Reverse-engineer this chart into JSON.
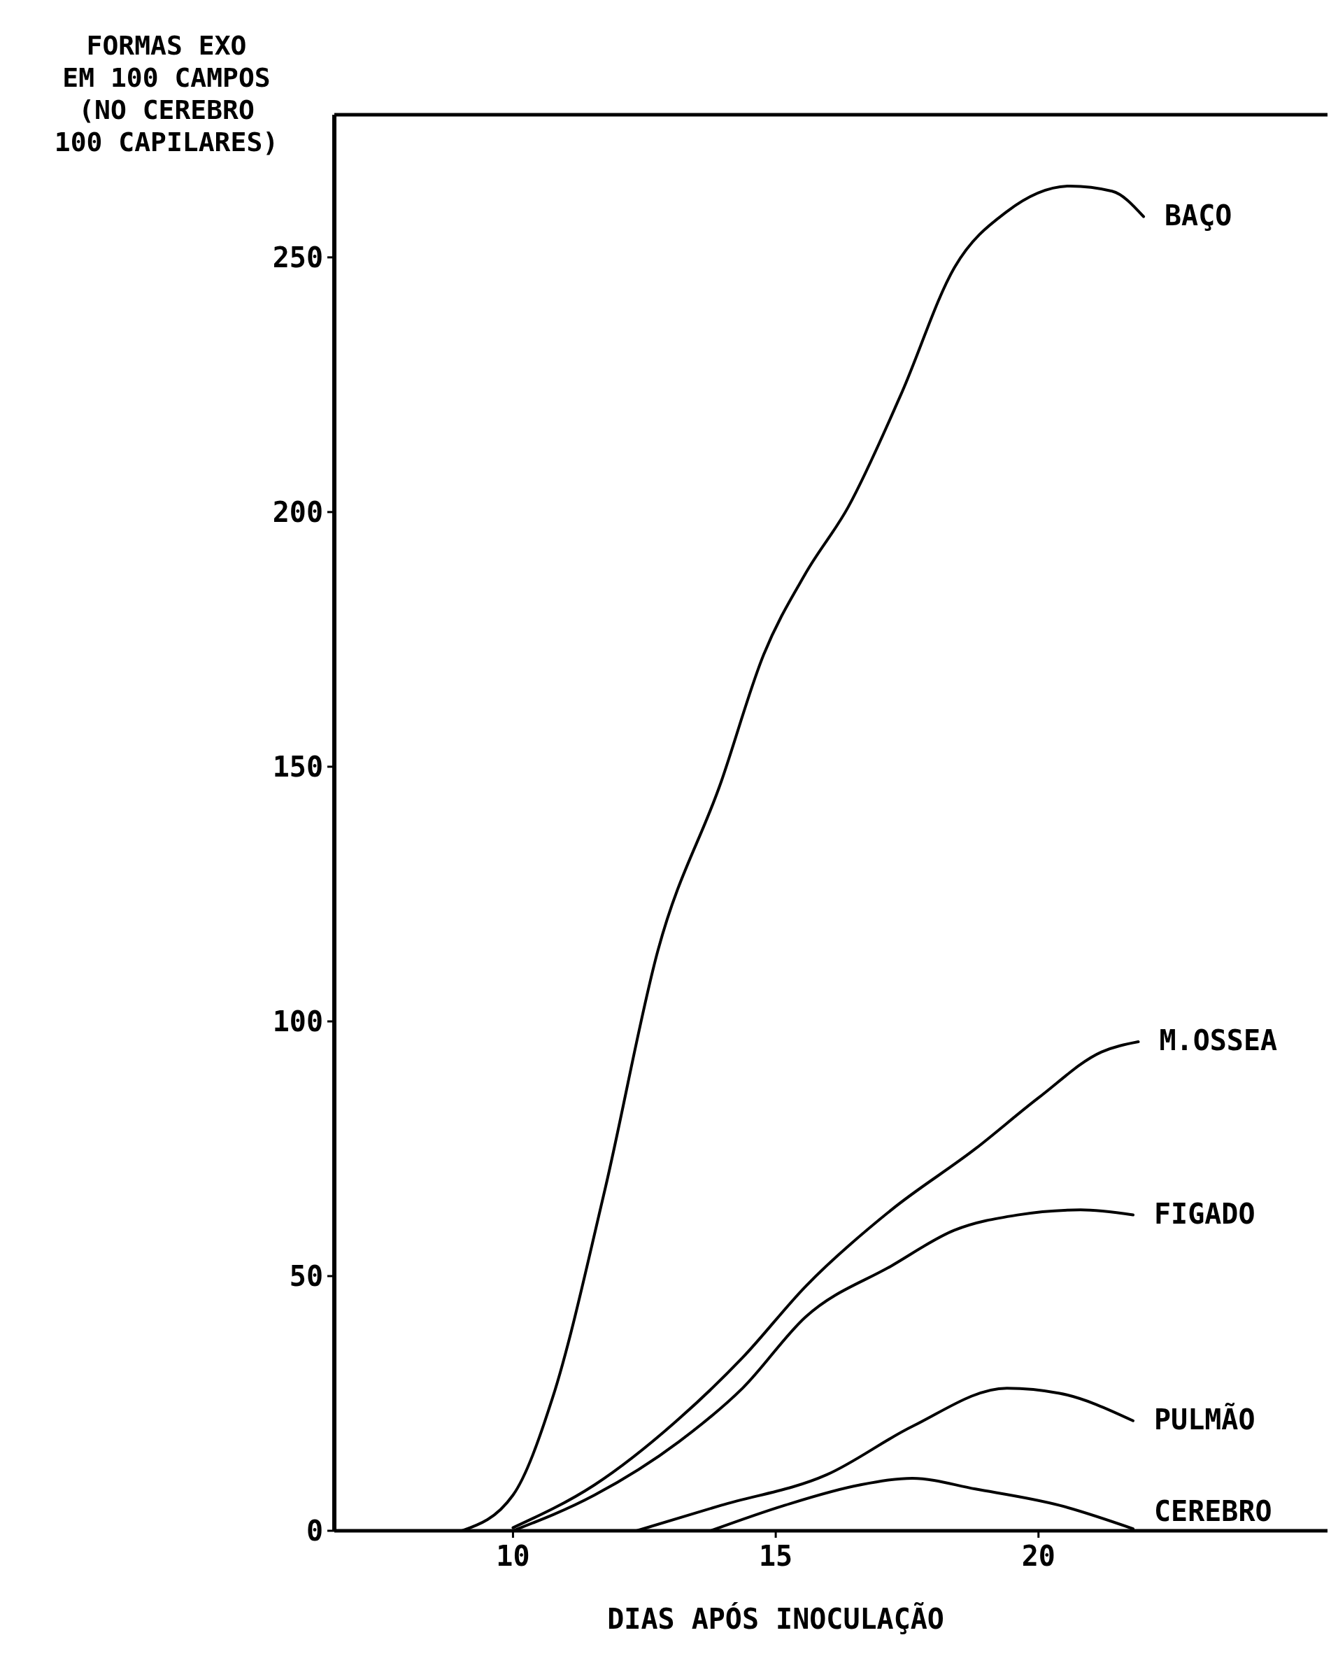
{
  "chart_data": {
    "type": "line",
    "ylabel": "FORMAS EXO\nEM 100 CAMPOS\n(NO CEREBRO\n100 CAPILARES)",
    "xlabel": "DIAS APÓS INOCULAÇÃO",
    "xlim": [
      6.6,
      25.5
    ],
    "xticks": [
      10,
      15,
      20
    ],
    "ylim": [
      0,
      278
    ],
    "yticks": [
      0,
      50,
      100,
      150,
      200,
      250
    ],
    "grid": false,
    "marker": "none",
    "line_style": "solid",
    "series": [
      {
        "name": "BAÇO",
        "color": "#000000",
        "x": [
          9.03,
          10,
          10.75,
          11.75,
          12.76,
          13.96,
          14.77,
          15.57,
          16.38,
          17.38,
          18.4,
          19.4,
          20.6,
          21.4,
          22
        ],
        "values": [
          0,
          7,
          26,
          67,
          114,
          147,
          172,
          188,
          201,
          223,
          248,
          259,
          264,
          263,
          258
        ]
      },
      {
        "name": "M.OSSEA",
        "color": "#000000",
        "x": [
          10,
          11.55,
          13.16,
          14.37,
          15.57,
          17.2,
          18.8,
          20,
          21.2,
          21.9
        ],
        "values": [
          0.6,
          9,
          22,
          34,
          48,
          63,
          75,
          85,
          94,
          96
        ]
      },
      {
        "name": "FIGADO",
        "color": "#000000",
        "x": [
          10,
          11.55,
          13.16,
          14.37,
          15.57,
          17.2,
          18.4,
          19.6,
          20.8,
          21.8
        ],
        "values": [
          0,
          7,
          17.5,
          28,
          42,
          52,
          59,
          62,
          63,
          62
        ]
      },
      {
        "name": "PULMÃO",
        "color": "#000000",
        "x": [
          12.35,
          13.96,
          15.97,
          17.6,
          19.4,
          20.4,
          21.8
        ],
        "values": [
          0,
          5,
          11,
          20.5,
          28,
          27,
          21.6
        ]
      },
      {
        "name": "CEREBRO",
        "color": "#000000",
        "x": [
          13.76,
          15.17,
          16.6,
          17.6,
          18.8,
          20.4,
          21.8
        ],
        "values": [
          0,
          5,
          9,
          10.3,
          8.2,
          5,
          0.4
        ]
      }
    ]
  }
}
